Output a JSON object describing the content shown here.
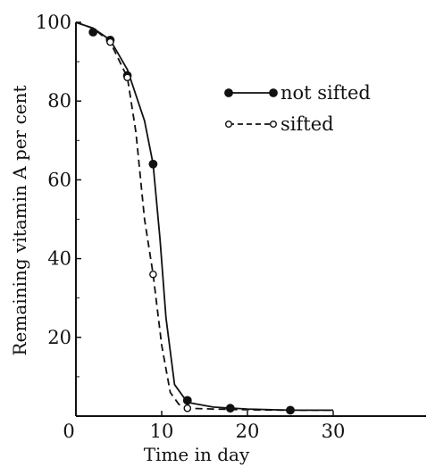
{
  "chart_data": {
    "type": "line",
    "xlabel": "Time in day",
    "ylabel": "Remaining vitamin A per cent",
    "xlim": [
      0,
      45
    ],
    "ylim": [
      0,
      100
    ],
    "x_ticks": [
      0,
      10,
      20,
      30
    ],
    "y_ticks": [
      20,
      40,
      60,
      80,
      100
    ],
    "x_tick_labels": [
      "0",
      "10",
      "20",
      "30"
    ],
    "y_tick_labels": [
      "20",
      "40",
      "60",
      "80",
      "100"
    ],
    "grid": false,
    "legend_position": "top-right",
    "series": [
      {
        "name": "not sifted",
        "style": "solid",
        "marker": "filled-circle",
        "points": [
          [
            2,
            97.5
          ],
          [
            4,
            95.5
          ],
          [
            6,
            86.5
          ],
          [
            9,
            64
          ],
          [
            13,
            4
          ],
          [
            18,
            2
          ],
          [
            25,
            1.5
          ]
        ],
        "curve": [
          [
            0,
            100
          ],
          [
            2,
            98.5
          ],
          [
            4,
            95.5
          ],
          [
            6,
            88
          ],
          [
            8,
            75
          ],
          [
            9,
            64
          ],
          [
            9.8,
            45
          ],
          [
            10.5,
            25
          ],
          [
            11.5,
            8
          ],
          [
            13,
            3.5
          ],
          [
            16,
            2.3
          ],
          [
            20,
            1.8
          ],
          [
            25,
            1.5
          ],
          [
            30,
            1.5
          ]
        ]
      },
      {
        "name": "sifted",
        "style": "dashed",
        "marker": "open-circle",
        "points": [
          [
            4,
            95
          ],
          [
            6,
            86
          ],
          [
            9,
            36
          ],
          [
            13,
            2
          ]
        ],
        "curve": [
          [
            0,
            100
          ],
          [
            2,
            98.5
          ],
          [
            4,
            95
          ],
          [
            6,
            86
          ],
          [
            7,
            72
          ],
          [
            8,
            50
          ],
          [
            9,
            36
          ],
          [
            10,
            18
          ],
          [
            11,
            6
          ],
          [
            12,
            3
          ],
          [
            13,
            2
          ],
          [
            16,
            1.8
          ],
          [
            20,
            1.6
          ],
          [
            25,
            1.5
          ],
          [
            30,
            1.5
          ]
        ]
      }
    ]
  }
}
